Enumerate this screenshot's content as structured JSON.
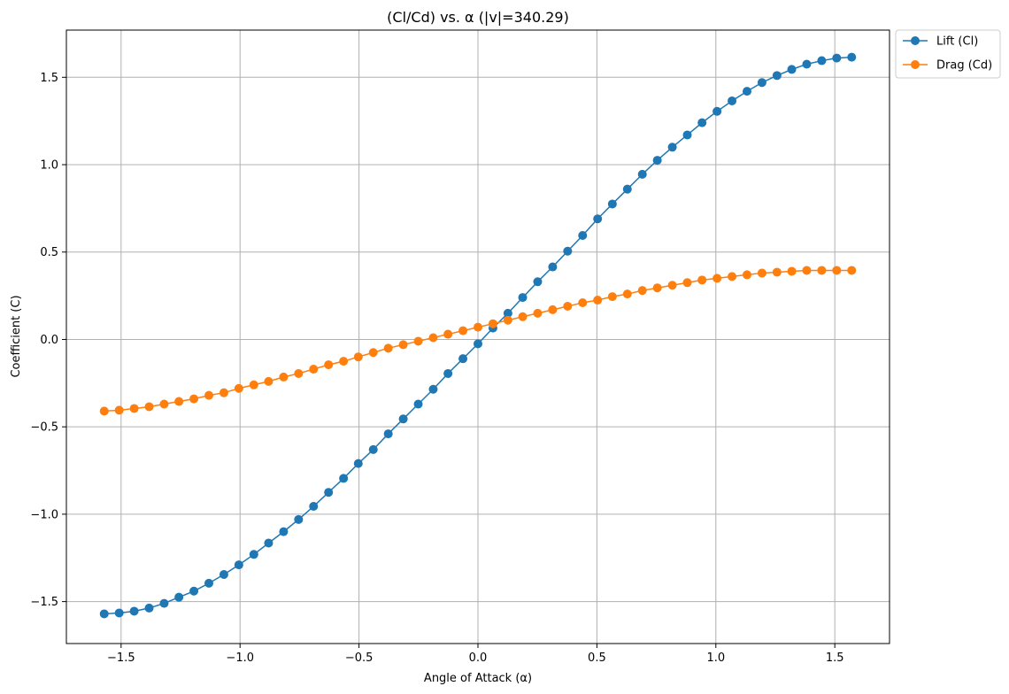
{
  "chart_data": {
    "type": "line",
    "title": "(Cl/Cd) vs. α (|v|=340.29)",
    "xlabel": "Angle of Attack (α)",
    "ylabel": "Coefficient (C)",
    "xlim": [
      -1.73,
      1.73
    ],
    "ylim": [
      -1.74,
      1.77
    ],
    "xticks": [
      -1.5,
      -1.0,
      -0.5,
      0.0,
      0.5,
      1.0,
      1.5
    ],
    "xtick_labels": [
      "−1.5",
      "−1.0",
      "−0.5",
      "0.0",
      "0.5",
      "1.0",
      "1.5"
    ],
    "yticks": [
      -1.5,
      -1.0,
      -0.5,
      0.0,
      0.5,
      1.0,
      1.5
    ],
    "ytick_labels": [
      "−1.5",
      "−1.0",
      "−0.5",
      "0.0",
      "0.5",
      "1.0",
      "1.5"
    ],
    "grid": true,
    "legend_placement": "outside-top-right",
    "x": [
      -1.571,
      -1.508,
      -1.445,
      -1.382,
      -1.319,
      -1.257,
      -1.194,
      -1.131,
      -1.068,
      -1.005,
      -0.942,
      -0.88,
      -0.817,
      -0.754,
      -0.691,
      -0.628,
      -0.565,
      -0.503,
      -0.44,
      -0.377,
      -0.314,
      -0.251,
      -0.188,
      -0.126,
      -0.063,
      0.0,
      0.063,
      0.126,
      0.188,
      0.251,
      0.314,
      0.377,
      0.44,
      0.503,
      0.565,
      0.628,
      0.691,
      0.754,
      0.817,
      0.88,
      0.942,
      1.005,
      1.068,
      1.131,
      1.194,
      1.257,
      1.319,
      1.382,
      1.445,
      1.508,
      1.571
    ],
    "series": [
      {
        "name": "Lift (Cl)",
        "color": "#1f77b4",
        "values": [
          -1.57,
          -1.565,
          -1.555,
          -1.537,
          -1.51,
          -1.475,
          -1.44,
          -1.395,
          -1.345,
          -1.29,
          -1.23,
          -1.165,
          -1.1,
          -1.03,
          -0.955,
          -0.875,
          -0.795,
          -0.71,
          -0.63,
          -0.54,
          -0.455,
          -0.37,
          -0.285,
          -0.195,
          -0.11,
          -0.025,
          0.065,
          0.15,
          0.24,
          0.33,
          0.415,
          0.505,
          0.595,
          0.69,
          0.775,
          0.86,
          0.945,
          1.025,
          1.1,
          1.17,
          1.24,
          1.305,
          1.365,
          1.42,
          1.47,
          1.51,
          1.545,
          1.575,
          1.595,
          1.61,
          1.615
        ]
      },
      {
        "name": "Drag (Cd)",
        "color": "#ff7f0e",
        "values": [
          -0.41,
          -0.405,
          -0.395,
          -0.385,
          -0.37,
          -0.355,
          -0.34,
          -0.32,
          -0.305,
          -0.28,
          -0.26,
          -0.24,
          -0.215,
          -0.195,
          -0.17,
          -0.145,
          -0.125,
          -0.1,
          -0.075,
          -0.05,
          -0.03,
          -0.01,
          0.01,
          0.03,
          0.05,
          0.07,
          0.09,
          0.11,
          0.13,
          0.15,
          0.17,
          0.19,
          0.21,
          0.225,
          0.245,
          0.26,
          0.28,
          0.295,
          0.31,
          0.325,
          0.34,
          0.35,
          0.36,
          0.37,
          0.38,
          0.385,
          0.39,
          0.395,
          0.395,
          0.395,
          0.395
        ]
      }
    ]
  }
}
